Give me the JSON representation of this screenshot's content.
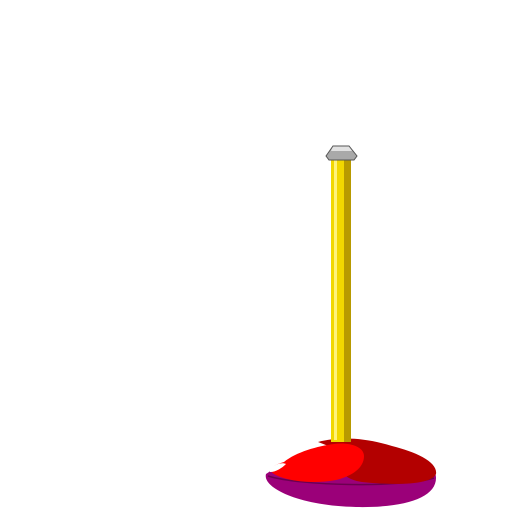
{
  "scene": {
    "subject": "pole-on-base",
    "background": "#ffffff"
  },
  "colors": {
    "pole_main": "#f2d700",
    "pole_shadow": "#b89a00",
    "pole_highlight": "#fff27a",
    "cap_main": "#a9a9a9",
    "cap_dark": "#555555",
    "cap_light": "#e2e2e2",
    "base_top_red": "#ff0000",
    "base_top_dark": "#b30000",
    "base_side": "#9b0079",
    "base_rim": "#6b0050",
    "base_highlight": "#ffffff"
  }
}
